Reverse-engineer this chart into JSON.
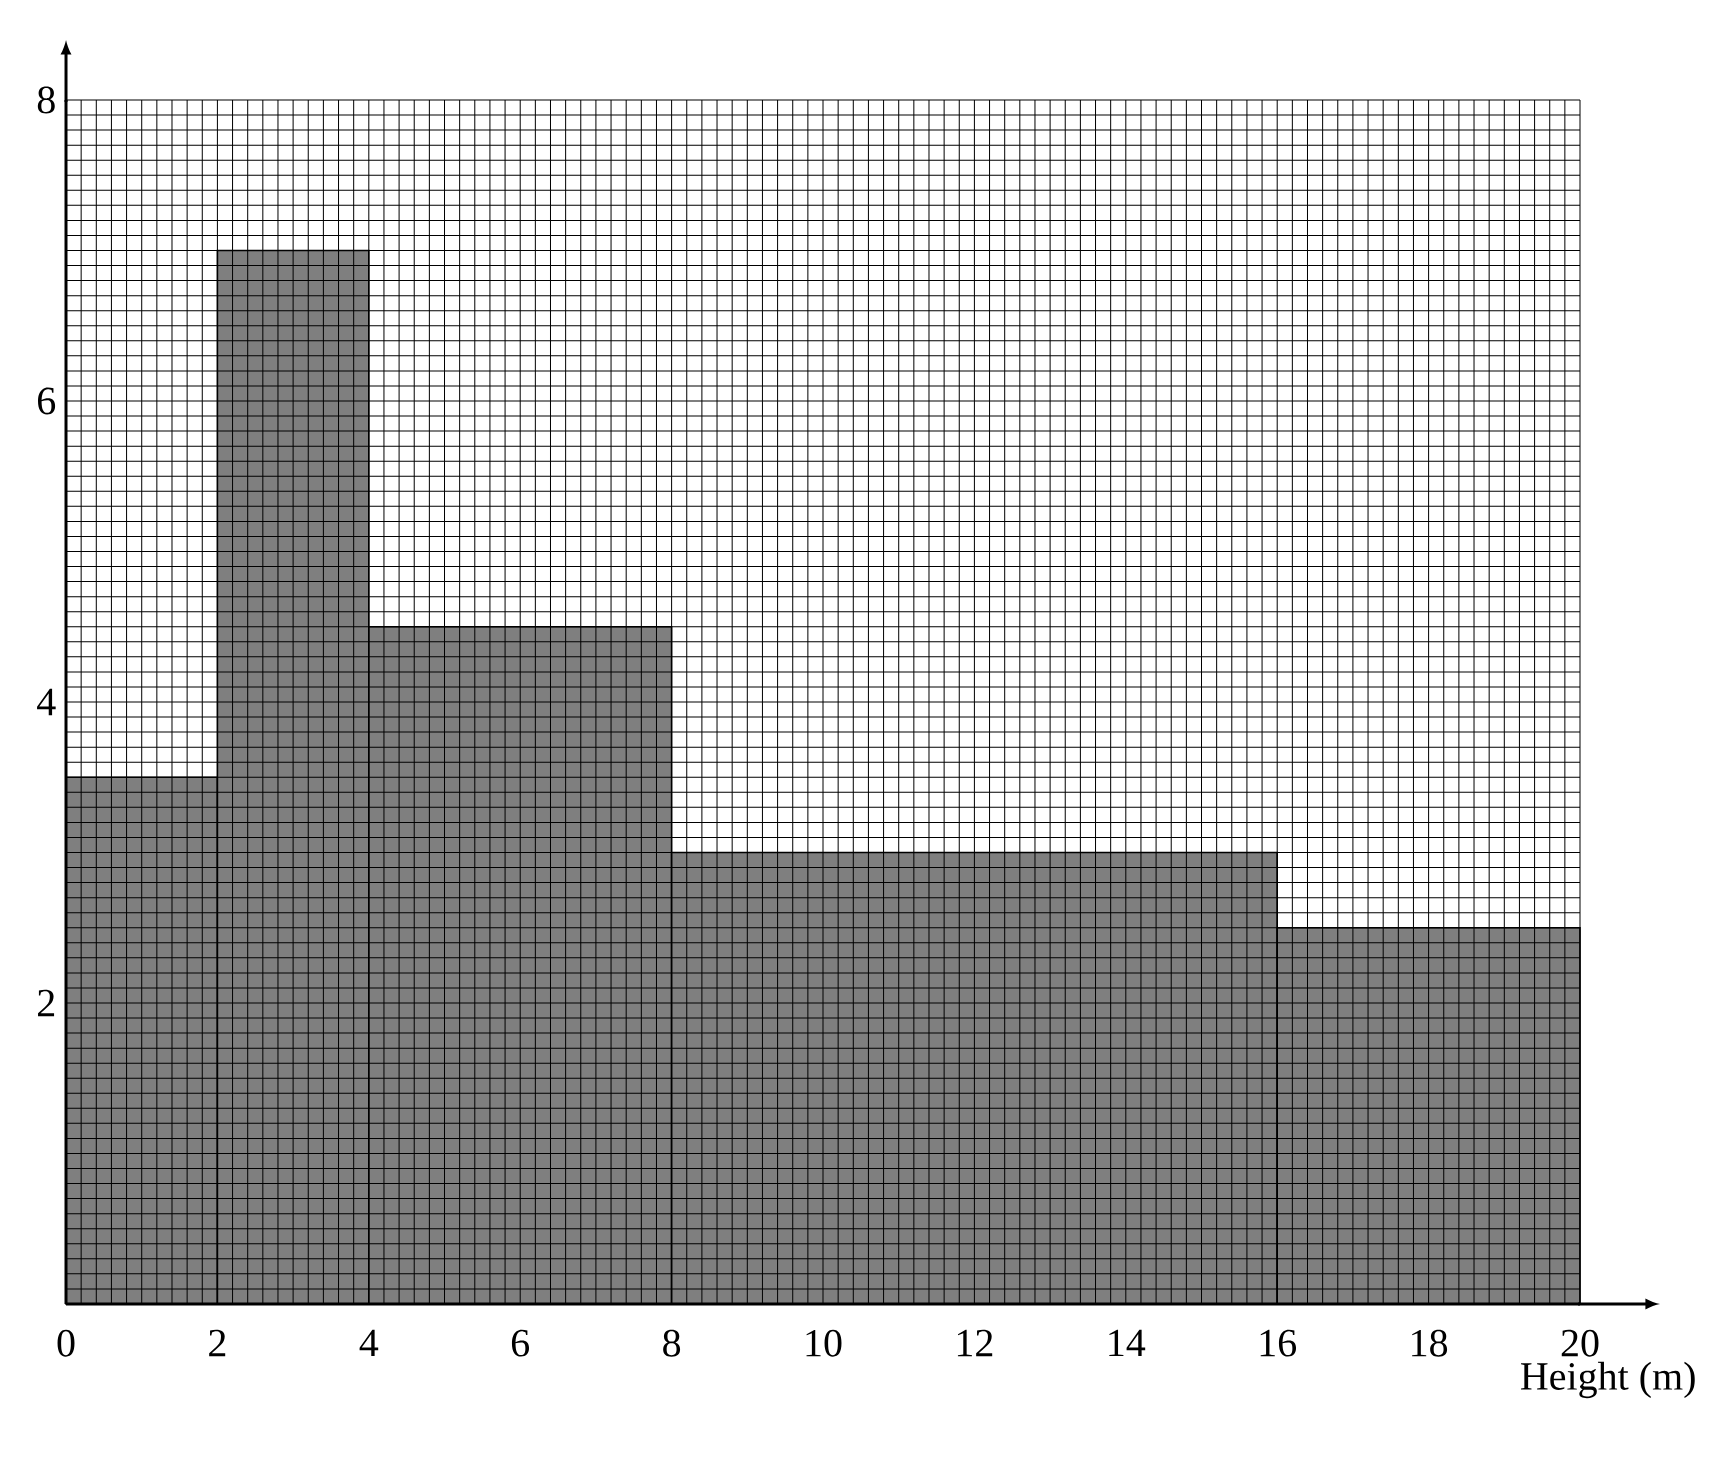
{
  "chart_data": {
    "type": "histogram",
    "xlabel": "Height (m)",
    "bins": [
      0,
      2,
      4,
      8,
      16,
      20
    ],
    "values": [
      3.5,
      7,
      4.5,
      3,
      2.5
    ],
    "color": "#7f7f7f",
    "xlim": [
      0,
      20
    ],
    "ylim": [
      0,
      8
    ],
    "xticks": [
      0,
      2,
      4,
      6,
      8,
      10,
      12,
      14,
      16,
      18,
      20
    ],
    "yticks": [
      {
        "value": 0,
        "label": null
      },
      2,
      4,
      6,
      8
    ],
    "grid": true
  }
}
